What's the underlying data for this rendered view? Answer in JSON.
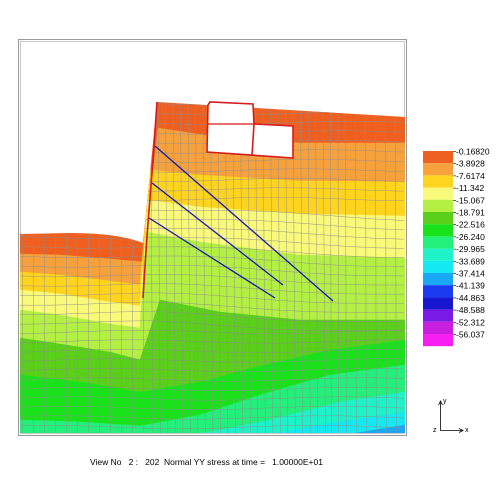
{
  "legend": {
    "values": [
      "-0.16820",
      "-3.8928",
      "-7.6174",
      "-11.342",
      "-15.067",
      "-18.791",
      "-22.516",
      "-26.240",
      "-29.965",
      "-33.689",
      "-37.414",
      "-41.139",
      "-44.863",
      "-48.588",
      "-52.312",
      "-56.037"
    ],
    "colors": [
      "#ef5f1f",
      "#f6a13c",
      "#ffd41f",
      "#f9f97a",
      "#b4f043",
      "#5ad01a",
      "#1ae21a",
      "#23f07a",
      "#1ef2c8",
      "#14e8f0",
      "#1aa8f4",
      "#1b3bf0",
      "#1717cf",
      "#7a1ae6",
      "#c71ee0",
      "#f71ef2"
    ]
  },
  "caption": {
    "text": "View No   2 :   202  Normal YY stress at time =   1.00000E+01"
  },
  "axes_indicator": {
    "y_label": "y",
    "z_label": "z",
    "x_label": "x"
  },
  "colors": {
    "frame": "#9a9a9a",
    "mesh": "#8d8d8d",
    "structure": "#d71a1a",
    "anchors": "#1a1aa8"
  }
}
